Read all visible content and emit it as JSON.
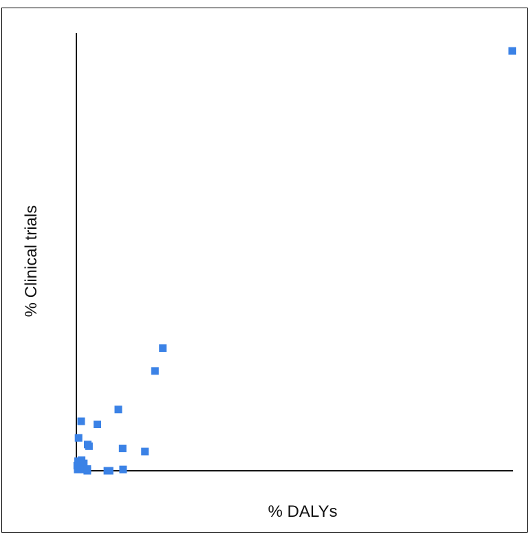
{
  "chart_data": {
    "type": "scatter",
    "title": "",
    "xlabel": "% DALYs",
    "ylabel": "% Clinical trials",
    "xlim": [
      0,
      100
    ],
    "ylim": [
      0,
      100
    ],
    "grid": false,
    "legend": "none",
    "marker": "square",
    "colors": {
      "marker": "#3b82e6",
      "axis": "#111111",
      "frame": "#000000"
    },
    "series": [
      {
        "values": [
          {
            "x": 99.8,
            "y": 95.9
          },
          {
            "x": 19.8,
            "y": 28.0
          },
          {
            "x": 18.0,
            "y": 22.8
          },
          {
            "x": 9.6,
            "y": 14.0
          },
          {
            "x": 1.1,
            "y": 11.3
          },
          {
            "x": 4.8,
            "y": 10.6
          },
          {
            "x": 0.5,
            "y": 7.5
          },
          {
            "x": 2.6,
            "y": 6.0
          },
          {
            "x": 2.9,
            "y": 5.6
          },
          {
            "x": 10.6,
            "y": 5.1
          },
          {
            "x": 15.7,
            "y": 4.4
          },
          {
            "x": 0.4,
            "y": 2.2
          },
          {
            "x": 1.2,
            "y": 2.4
          },
          {
            "x": 1.7,
            "y": 1.7
          },
          {
            "x": 0.2,
            "y": 1.2
          },
          {
            "x": 0.3,
            "y": 0.3
          },
          {
            "x": 1.0,
            "y": 0.4
          },
          {
            "x": 1.8,
            "y": 0.3
          },
          {
            "x": 2.5,
            "y": 0.4
          },
          {
            "x": 2.5,
            "y": 0.0
          },
          {
            "x": 7.1,
            "y": 0.0
          },
          {
            "x": 7.6,
            "y": 0.0
          },
          {
            "x": 10.7,
            "y": 0.3
          }
        ]
      }
    ]
  }
}
